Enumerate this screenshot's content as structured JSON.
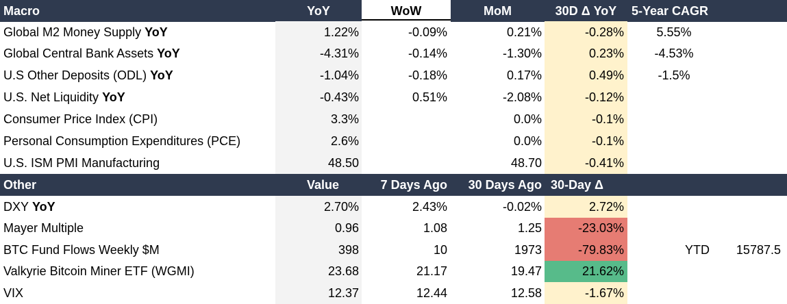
{
  "macro": {
    "headers": [
      "Macro",
      "YoY",
      "WoW",
      "MoM",
      "30D Δ YoY",
      "5-Year CAGR"
    ],
    "rows": [
      {
        "name": "Global M2 Money Supply",
        "bold": "YoY",
        "yoy": "1.22%",
        "wow": "-0.09%",
        "mom": "0.21%",
        "d30": "-0.28%",
        "cagr": "5.55%"
      },
      {
        "name": "Global Central Bank Assets",
        "bold": "YoY",
        "yoy": "-4.31%",
        "wow": "-0.14%",
        "mom": "-1.30%",
        "d30": "0.23%",
        "cagr": "-4.53%"
      },
      {
        "name": "U.S Other Deposits (ODL)",
        "bold": "YoY",
        "yoy": "-1.04%",
        "wow": "-0.18%",
        "mom": "0.17%",
        "d30": "0.49%",
        "cagr": "-1.5%"
      },
      {
        "name": "U.S. Net Liquidity",
        "bold": "YoY",
        "yoy": "-0.43%",
        "wow": "0.51%",
        "mom": "-2.08%",
        "d30": "-0.12%",
        "cagr": ""
      },
      {
        "name": "Consumer Price Index (CPI)",
        "bold": "",
        "yoy": "3.3%",
        "wow": "",
        "mom": "0.0%",
        "d30": "-0.1%",
        "cagr": ""
      },
      {
        "name": "Personal Consumption Expenditures (PCE)",
        "bold": "",
        "yoy": "2.6%",
        "wow": "",
        "mom": "0.0%",
        "d30": "-0.1%",
        "cagr": ""
      },
      {
        "name": "U.S. ISM PMI Manufacturing",
        "bold": "",
        "yoy": "48.50",
        "wow": "",
        "mom": "48.70",
        "d30": "-0.41%",
        "cagr": ""
      }
    ]
  },
  "other": {
    "headers": [
      "Other",
      "Value",
      "7 Days Ago",
      "30 Days Ago",
      "30-Day Δ"
    ],
    "rows": [
      {
        "name": "DXY",
        "bold": "YoY",
        "value": "2.70%",
        "d7": "2.43%",
        "d30": "-0.02%",
        "delta": "2.72%",
        "tone": "neutral",
        "extra_label": "",
        "extra_value": ""
      },
      {
        "name": "Mayer Multiple",
        "bold": "",
        "value": "0.96",
        "d7": "1.08",
        "d30": "1.25",
        "delta": "-23.03%",
        "tone": "neg-strong",
        "extra_label": "",
        "extra_value": ""
      },
      {
        "name": "BTC Fund Flows Weekly $M",
        "bold": "",
        "value": "398",
        "d7": "10",
        "d30": "1973",
        "delta": "-79.83%",
        "tone": "neg-strong",
        "extra_label": "YTD",
        "extra_value": "15787.5"
      },
      {
        "name": "Valkyrie Bitcoin Miner ETF (WGMI)",
        "bold": "",
        "value": "23.68",
        "d7": "21.17",
        "d30": "19.47",
        "delta": "21.62%",
        "tone": "pos-strong",
        "extra_label": "",
        "extra_value": ""
      },
      {
        "name": "VIX",
        "bold": "",
        "value": "12.37",
        "d7": "12.44",
        "d30": "12.58",
        "delta": "-1.67%",
        "tone": "neutral",
        "extra_label": "",
        "extra_value": ""
      }
    ]
  },
  "colors": {
    "header_bg": "#2f3a4f",
    "value_col_bg": "#f3f3f3",
    "delta_col_bg": "#fff2cc",
    "negative_strong": "#e67c73",
    "positive_strong": "#57bb8a"
  }
}
